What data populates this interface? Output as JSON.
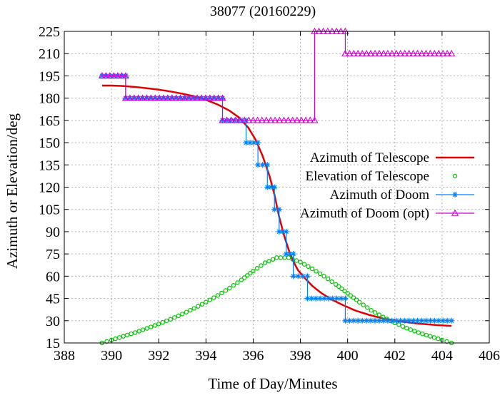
{
  "chart_data": {
    "type": "line",
    "title": "38077 (20160229)",
    "xlabel": "Time of Day/Minutes",
    "ylabel": "Azimuth or Elevation/deg",
    "xlim": [
      388,
      406
    ],
    "ylim": [
      15,
      225
    ],
    "xticks": [
      "388",
      "390",
      "392",
      "394",
      "396",
      "398",
      "400",
      "402",
      "404",
      "406"
    ],
    "yticks": [
      "15",
      "30",
      "45",
      "60",
      "75",
      "90",
      "105",
      "120",
      "135",
      "150",
      "165",
      "180",
      "195",
      "210",
      "225"
    ],
    "grid": true,
    "legend_position": "right-middle",
    "series": [
      {
        "name": "Azimuth of Telescope",
        "style": "line",
        "color": "#e00000",
        "points": [
          [
            389.6,
            188.5
          ],
          [
            390.0,
            188.5
          ],
          [
            390.5,
            188.2
          ],
          [
            391.0,
            187.5
          ],
          [
            391.5,
            186.7
          ],
          [
            392.0,
            185.7
          ],
          [
            392.5,
            184.5
          ],
          [
            393.0,
            183.0
          ],
          [
            393.5,
            181.2
          ],
          [
            394.0,
            178.8
          ],
          [
            394.5,
            175.7
          ],
          [
            395.0,
            171.5
          ],
          [
            395.4,
            167.0
          ],
          [
            395.8,
            160.0
          ],
          [
            396.1,
            152.0
          ],
          [
            396.4,
            141.0
          ],
          [
            396.7,
            127.0
          ],
          [
            396.9,
            115.0
          ],
          [
            397.1,
            100.0
          ],
          [
            397.3,
            88.0
          ],
          [
            397.5,
            78.0
          ],
          [
            397.7,
            70.0
          ],
          [
            397.9,
            64.0
          ],
          [
            398.2,
            58.5
          ],
          [
            398.5,
            53.5
          ],
          [
            398.9,
            48.5
          ],
          [
            399.3,
            44.5
          ],
          [
            399.8,
            40.5
          ],
          [
            400.3,
            37.0
          ],
          [
            400.9,
            34.0
          ],
          [
            401.5,
            31.5
          ],
          [
            402.2,
            29.5
          ],
          [
            403.0,
            28.0
          ],
          [
            403.8,
            27.0
          ],
          [
            404.4,
            26.5
          ]
        ]
      },
      {
        "name": "Elevation of Telescope",
        "style": "circle",
        "color": "#00c000",
        "points": [
          [
            389.6,
            15.0
          ],
          [
            390.0,
            17.0
          ],
          [
            390.5,
            19.5
          ],
          [
            391.0,
            22.0
          ],
          [
            391.5,
            24.8
          ],
          [
            392.0,
            27.8
          ],
          [
            392.5,
            31.0
          ],
          [
            393.0,
            34.5
          ],
          [
            393.5,
            38.3
          ],
          [
            394.0,
            42.5
          ],
          [
            394.5,
            47.0
          ],
          [
            395.0,
            52.0
          ],
          [
            395.5,
            57.5
          ],
          [
            396.0,
            63.5
          ],
          [
            396.5,
            69.0
          ],
          [
            397.0,
            72.5
          ],
          [
            397.5,
            72.5
          ],
          [
            398.0,
            69.5
          ],
          [
            398.5,
            65.0
          ],
          [
            399.0,
            60.0
          ],
          [
            399.5,
            54.5
          ],
          [
            400.0,
            48.5
          ],
          [
            400.5,
            42.5
          ],
          [
            401.0,
            37.0
          ],
          [
            401.5,
            32.5
          ],
          [
            402.0,
            28.5
          ],
          [
            402.5,
            25.0
          ],
          [
            403.0,
            22.0
          ],
          [
            403.5,
            19.5
          ],
          [
            404.0,
            17.0
          ],
          [
            404.4,
            15.0
          ]
        ]
      },
      {
        "name": "Azimuth of Doom",
        "style": "star",
        "color": "#0080ff",
        "points": [
          [
            389.6,
            195
          ],
          [
            390.6,
            195
          ],
          [
            390.6,
            180
          ],
          [
            394.7,
            180
          ],
          [
            394.7,
            165
          ],
          [
            395.7,
            165
          ],
          [
            395.7,
            150
          ],
          [
            396.2,
            150
          ],
          [
            396.2,
            135
          ],
          [
            396.6,
            135
          ],
          [
            396.6,
            120
          ],
          [
            396.9,
            120
          ],
          [
            396.9,
            105
          ],
          [
            397.1,
            105
          ],
          [
            397.1,
            90
          ],
          [
            397.4,
            90
          ],
          [
            397.4,
            75
          ],
          [
            397.7,
            75
          ],
          [
            397.7,
            60
          ],
          [
            398.3,
            60
          ],
          [
            398.3,
            45
          ],
          [
            399.9,
            45
          ],
          [
            399.9,
            30
          ],
          [
            404.4,
            30
          ]
        ]
      },
      {
        "name": "Azimuth of Doom (opt)",
        "style": "triangle",
        "color": "#d000d0",
        "points": [
          [
            389.6,
            195
          ],
          [
            390.6,
            195
          ],
          [
            390.6,
            180
          ],
          [
            394.7,
            180
          ],
          [
            394.7,
            165
          ],
          [
            398.6,
            165
          ],
          [
            398.6,
            225
          ],
          [
            399.9,
            225
          ],
          [
            399.9,
            210
          ],
          [
            404.4,
            210
          ]
        ]
      }
    ]
  }
}
